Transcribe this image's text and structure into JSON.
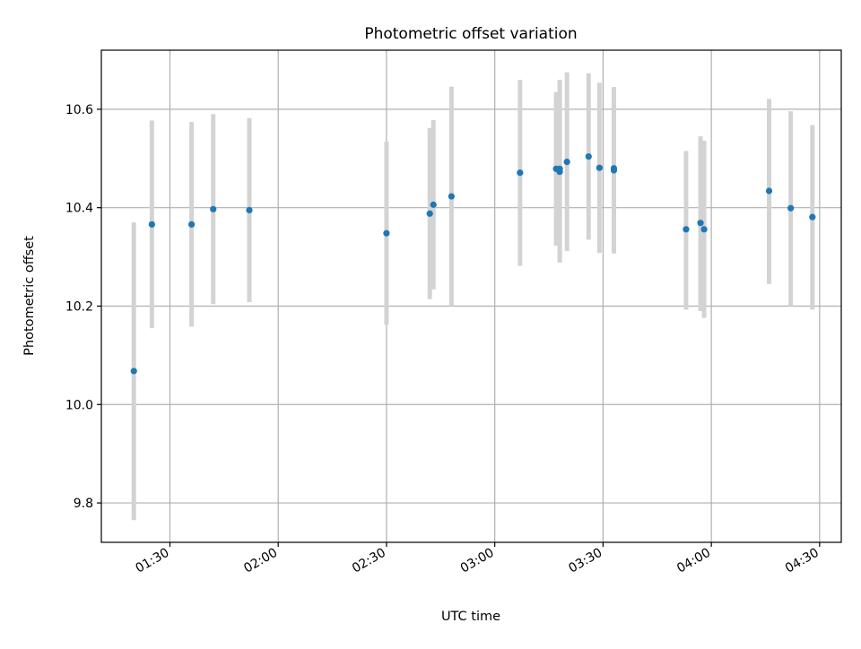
{
  "chart_data": {
    "type": "scatter",
    "title": "Photometric offset variation",
    "xlabel": "UTC time",
    "ylabel": "Photometric offset",
    "xlim": [
      "01:11",
      "04:36"
    ],
    "ylim": [
      9.72,
      10.72
    ],
    "x_ticks": [
      "01:30",
      "02:00",
      "02:30",
      "03:00",
      "03:30",
      "04:00",
      "04:30"
    ],
    "y_ticks": [
      9.8,
      10.0,
      10.2,
      10.4,
      10.6
    ],
    "y_tick_labels": [
      "9.8",
      "10.0",
      "10.2",
      "10.4",
      "10.6"
    ],
    "grid": true,
    "legend": "none",
    "colors": {
      "marker": "#1f77b4",
      "errorbar": "#d3d3d3",
      "grid": "#b0b0b0"
    },
    "series": [
      {
        "points": [
          {
            "x": "01:20",
            "y": 10.068,
            "ylow": 9.765,
            "yhigh": 10.37
          },
          {
            "x": "01:25",
            "y": 10.366,
            "ylow": 10.155,
            "yhigh": 10.577
          },
          {
            "x": "01:36",
            "y": 10.366,
            "ylow": 10.158,
            "yhigh": 10.574
          },
          {
            "x": "01:42",
            "y": 10.397,
            "ylow": 10.204,
            "yhigh": 10.59
          },
          {
            "x": "01:52",
            "y": 10.395,
            "ylow": 10.208,
            "yhigh": 10.582
          },
          {
            "x": "02:30",
            "y": 10.348,
            "ylow": 10.162,
            "yhigh": 10.534
          },
          {
            "x": "02:42",
            "y": 10.388,
            "ylow": 10.214,
            "yhigh": 10.562
          },
          {
            "x": "02:43",
            "y": 10.406,
            "ylow": 10.234,
            "yhigh": 10.578
          },
          {
            "x": "02:48",
            "y": 10.423,
            "ylow": 10.2,
            "yhigh": 10.646
          },
          {
            "x": "03:07",
            "y": 10.471,
            "ylow": 10.282,
            "yhigh": 10.66
          },
          {
            "x": "03:17",
            "y": 10.479,
            "ylow": 10.323,
            "yhigh": 10.635
          },
          {
            "x": "03:18",
            "y": 10.473,
            "ylow": 10.288,
            "yhigh": 10.658
          },
          {
            "x": "03:18",
            "y": 10.479,
            "ylow": 10.298,
            "yhigh": 10.66
          },
          {
            "x": "03:20",
            "y": 10.493,
            "ylow": 10.312,
            "yhigh": 10.675
          },
          {
            "x": "03:26",
            "y": 10.504,
            "ylow": 10.335,
            "yhigh": 10.673
          },
          {
            "x": "03:29",
            "y": 10.481,
            "ylow": 10.308,
            "yhigh": 10.654
          },
          {
            "x": "03:33",
            "y": 10.476,
            "ylow": 10.307,
            "yhigh": 10.645
          },
          {
            "x": "03:33",
            "y": 10.48,
            "ylow": 10.318,
            "yhigh": 10.642
          },
          {
            "x": "03:53",
            "y": 10.356,
            "ylow": 10.193,
            "yhigh": 10.515
          },
          {
            "x": "03:57",
            "y": 10.369,
            "ylow": 10.19,
            "yhigh": 10.545
          },
          {
            "x": "03:58",
            "y": 10.356,
            "ylow": 10.176,
            "yhigh": 10.536
          },
          {
            "x": "04:16",
            "y": 10.434,
            "ylow": 10.245,
            "yhigh": 10.621
          },
          {
            "x": "04:22",
            "y": 10.399,
            "ylow": 10.2,
            "yhigh": 10.596
          },
          {
            "x": "04:28",
            "y": 10.381,
            "ylow": 10.193,
            "yhigh": 10.568
          }
        ]
      }
    ]
  }
}
